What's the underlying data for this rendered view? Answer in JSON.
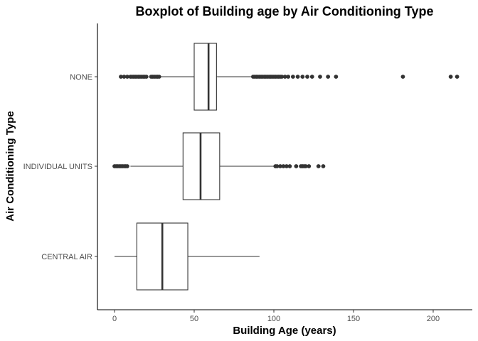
{
  "chart_data": {
    "type": "boxplot",
    "orientation": "horizontal",
    "title": "Boxplot of Building age by Air Conditioning Type",
    "xlabel": "Building Age (years)",
    "ylabel": "Air Conditioning Type",
    "xlim": [
      -10,
      224
    ],
    "xticks": [
      0,
      50,
      100,
      150,
      200
    ],
    "categories": [
      "CENTRAL AIR",
      "INDIVIDUAL UNITS",
      "NONE"
    ],
    "grid": false,
    "colors": {
      "box_fill": "#ffffff",
      "box_stroke": "#333333",
      "outlier": "#333333"
    },
    "boxes": [
      {
        "category": "CENTRAL AIR",
        "whisker_low": 0,
        "q1": 14,
        "median": 30,
        "q3": 46,
        "whisker_high": 91,
        "outliers": []
      },
      {
        "category": "INDIVIDUAL UNITS",
        "whisker_low": 10,
        "q1": 43,
        "median": 54,
        "q3": 66,
        "whisker_high": 100,
        "outliers": [
          0,
          1,
          2,
          3,
          4,
          5,
          6,
          7,
          8,
          101,
          102,
          104,
          106,
          108,
          110,
          114,
          117,
          118,
          119,
          120,
          122,
          128,
          131
        ]
      },
      {
        "category": "NONE",
        "whisker_low": 29,
        "q1": 50,
        "median": 59,
        "q3": 64,
        "whisker_high": 86,
        "outliers": [
          4,
          6,
          8,
          10,
          11,
          12,
          13,
          14,
          15,
          16,
          17,
          18,
          19,
          20,
          23,
          24,
          25,
          26,
          27,
          28,
          87,
          88,
          89,
          90,
          91,
          92,
          93,
          94,
          95,
          96,
          97,
          98,
          99,
          100,
          101,
          102,
          103,
          104,
          105,
          107,
          109,
          112,
          115,
          118,
          121,
          124,
          129,
          134,
          139,
          181,
          211,
          215
        ]
      }
    ]
  }
}
